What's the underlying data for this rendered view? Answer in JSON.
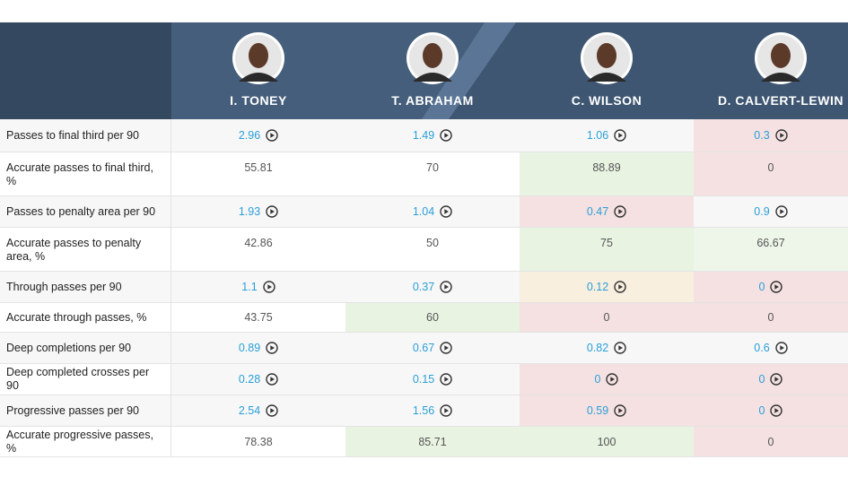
{
  "players": [
    {
      "name": "I. TONEY"
    },
    {
      "name": "T. ABRAHAM"
    },
    {
      "name": "C. WILSON"
    },
    {
      "name": "D. CALVERT-LEWIN"
    }
  ],
  "rows": [
    {
      "label": "Passes to final third per 90",
      "link": true,
      "values": [
        2.96,
        1.49,
        1.06,
        0.3
      ],
      "colors": [
        "#f7f7f7",
        "#f7f7f7",
        "#f7f7f7",
        "#f5e1e1"
      ]
    },
    {
      "label": "Accurate passes to final third, %",
      "link": false,
      "values": [
        55.81,
        70,
        88.89,
        0
      ],
      "colors": [
        "#ffffff",
        "#ffffff",
        "#e8f3e2",
        "#f5e1e1"
      ]
    },
    {
      "label": "Passes to penalty area per 90",
      "link": true,
      "values": [
        1.93,
        1.04,
        0.47,
        0.9
      ],
      "colors": [
        "#f7f7f7",
        "#f7f7f7",
        "#f5e1e1",
        "#f7f7f7"
      ]
    },
    {
      "label": "Accurate passes to penalty area, %",
      "link": false,
      "values": [
        42.86,
        50,
        75,
        66.67
      ],
      "colors": [
        "#ffffff",
        "#ffffff",
        "#e8f3e2",
        "#eef6ea"
      ]
    },
    {
      "label": "Through passes per 90",
      "link": true,
      "values": [
        1.1,
        0.37,
        0.12,
        0
      ],
      "colors": [
        "#f7f7f7",
        "#f7f7f7",
        "#f8efdf",
        "#f5e1e1"
      ]
    },
    {
      "label": "Accurate through passes, %",
      "link": false,
      "values": [
        43.75,
        60,
        0,
        0
      ],
      "colors": [
        "#ffffff",
        "#e8f3e2",
        "#f5e1e1",
        "#f5e1e1"
      ]
    },
    {
      "label": "Deep completions per 90",
      "link": true,
      "values": [
        0.89,
        0.67,
        0.82,
        0.6
      ],
      "colors": [
        "#f7f7f7",
        "#f7f7f7",
        "#f7f7f7",
        "#f7f7f7"
      ]
    },
    {
      "label": "Deep completed crosses per 90",
      "link": true,
      "values": [
        0.28,
        0.15,
        0,
        0
      ],
      "colors": [
        "#f7f7f7",
        "#f7f7f7",
        "#f5e1e1",
        "#f5e1e1"
      ]
    },
    {
      "label": "Progressive passes per 90",
      "link": true,
      "values": [
        2.54,
        1.56,
        0.59,
        0
      ],
      "colors": [
        "#f7f7f7",
        "#f7f7f7",
        "#f5e1e1",
        "#f5e1e1"
      ]
    },
    {
      "label": "Accurate progressive passes, %",
      "link": false,
      "values": [
        78.38,
        85.71,
        100,
        0
      ],
      "colors": [
        "#ffffff",
        "#e8f3e2",
        "#e8f3e2",
        "#f5e1e1"
      ]
    }
  ]
}
